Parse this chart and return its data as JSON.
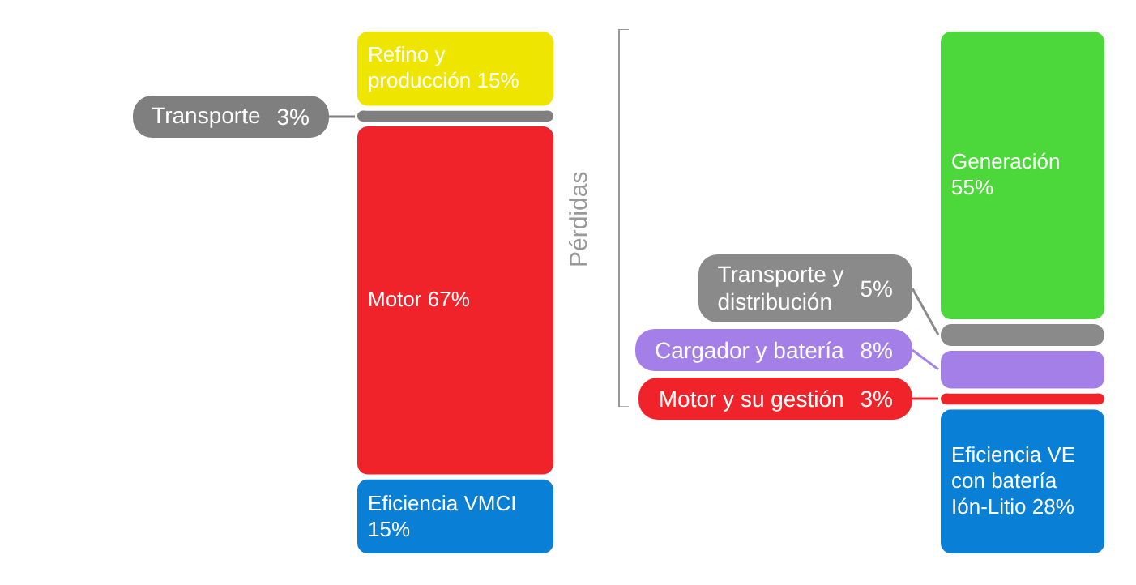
{
  "chart_data": [
    {
      "type": "bar",
      "stacked": true,
      "categories": [
        null
      ],
      "series": [
        {
          "name": "Eficiencia VMCI",
          "color": "#0a7fd6",
          "values": [
            15
          ],
          "value_labels": [
            "15%"
          ]
        },
        {
          "name": "Motor",
          "color": "#f0232a",
          "values": [
            67
          ],
          "value_labels": [
            "67%"
          ]
        },
        {
          "name": "Transporte",
          "color": "#7f7f7f",
          "values": [
            3
          ],
          "value_labels": [
            "3%"
          ]
        },
        {
          "name": "Refino y producción",
          "color": "#eee600",
          "values": [
            15
          ],
          "value_labels": [
            "15%"
          ]
        }
      ]
    },
    {
      "type": "bar",
      "stacked": true,
      "categories": [
        null
      ],
      "annotations": [
        "Pérdidas"
      ],
      "series": [
        {
          "name": "Eficiencia VE con batería Ión-Litio",
          "color": "#0a7fd6",
          "values": [
            28
          ],
          "value_labels": [
            "28%"
          ]
        },
        {
          "name": "Motor y su gestión",
          "color": "#f0232a",
          "values": [
            3
          ],
          "value_labels": [
            "3%"
          ]
        },
        {
          "name": "Cargador y batería",
          "color": "#a57fe8",
          "values": [
            8
          ],
          "value_labels": [
            "8%"
          ]
        },
        {
          "name": "Transporte y distribución",
          "color": "#8a8a8a",
          "values": [
            5
          ],
          "value_labels": [
            "5%"
          ]
        },
        {
          "name": "Generación",
          "color": "#4cd83a",
          "values": [
            55
          ],
          "value_labels": [
            "55%"
          ]
        }
      ]
    }
  ]
}
